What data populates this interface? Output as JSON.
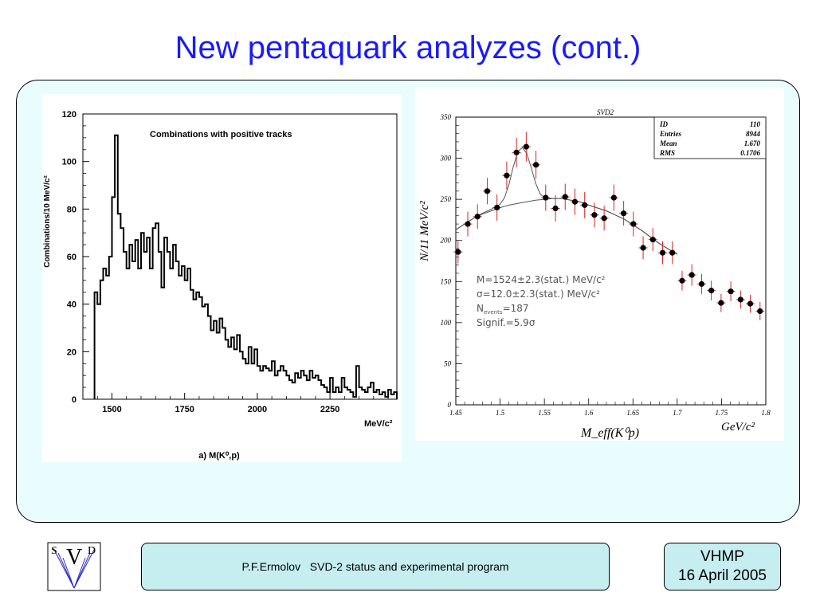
{
  "slide": {
    "title": "New pentaquark analyzes (cont.)",
    "footer_author": "P.F.Ermolov   SVD-2 status and experimental program",
    "footer_event": "VHMP",
    "footer_date": "16 April 2005",
    "logo_text": [
      "S",
      "V",
      "D"
    ]
  },
  "colors": {
    "title": "#1a1aff",
    "panel": "#e9fdff",
    "footer": "#c6eef0",
    "errorbar": "#dd2222"
  },
  "chart_data": [
    {
      "type": "bar",
      "subtype": "histogram-step",
      "title": "Combinations with positive tracks",
      "ylabel": "Combinations/10 MeV/c²",
      "xlabel_unit": "MeV/c²",
      "caption": "a) M(K⁰,p)",
      "xlim": [
        1400,
        2480
      ],
      "ylim": [
        0,
        120
      ],
      "xticks": [
        1500,
        1750,
        2000,
        2250
      ],
      "yticks": [
        0,
        20,
        40,
        60,
        80,
        100,
        120
      ],
      "bin_edges": [
        1440,
        1450,
        1460,
        1470,
        1480,
        1490,
        1500,
        1510,
        1520,
        1530,
        1540,
        1550,
        1560,
        1570,
        1580,
        1590,
        1600,
        1610,
        1620,
        1630,
        1640,
        1650,
        1660,
        1670,
        1680,
        1690,
        1700,
        1710,
        1720,
        1730,
        1740,
        1750,
        1760,
        1770,
        1780,
        1790,
        1800,
        1810,
        1820,
        1830,
        1840,
        1850,
        1860,
        1870,
        1880,
        1890,
        1900,
        1910,
        1920,
        1930,
        1940,
        1950,
        1960,
        1970,
        1980,
        1990,
        2000,
        2010,
        2020,
        2030,
        2040,
        2050,
        2060,
        2070,
        2080,
        2090,
        2100,
        2110,
        2120,
        2130,
        2140,
        2150,
        2160,
        2170,
        2180,
        2190,
        2200,
        2210,
        2220,
        2230,
        2240,
        2250,
        2260,
        2270,
        2280,
        2290,
        2300,
        2310,
        2320,
        2330,
        2340,
        2350,
        2360,
        2370,
        2380,
        2390,
        2400,
        2410,
        2420,
        2430,
        2440,
        2450,
        2460,
        2470,
        2480
      ],
      "values": [
        45,
        40,
        50,
        55,
        52,
        60,
        85,
        111,
        78,
        72,
        62,
        55,
        65,
        58,
        67,
        55,
        70,
        62,
        68,
        55,
        72,
        74,
        62,
        47,
        68,
        62,
        55,
        65,
        58,
        52,
        56,
        50,
        55,
        46,
        42,
        45,
        43,
        39,
        40,
        35,
        29,
        33,
        28,
        34,
        30,
        25,
        22,
        26,
        21,
        27,
        20,
        17,
        15,
        22,
        15,
        21,
        14,
        12,
        14,
        13,
        12,
        16,
        10,
        12,
        14,
        12,
        10,
        8,
        7,
        11,
        9,
        12,
        10,
        8,
        12,
        9,
        10,
        8,
        6,
        5,
        3,
        9,
        3,
        5,
        3,
        9,
        5,
        4,
        3,
        1,
        14,
        5,
        4,
        3,
        5,
        7,
        3,
        4,
        2,
        3,
        1,
        4,
        2,
        3
      ]
    },
    {
      "type": "scatter",
      "subtype": "points-with-errorbars-and-fit",
      "header": "SVD2",
      "ylabel": "N/11 MeV/c²",
      "xlabel": "M_eff(K⁰p)",
      "xlabel_unit": "GeV/c²",
      "xlim": [
        1.45,
        1.8
      ],
      "ylim": [
        0,
        350
      ],
      "xticks": [
        1.45,
        1.5,
        1.55,
        1.6,
        1.65,
        1.7,
        1.75,
        1.8
      ],
      "yticks": [
        0,
        50,
        100,
        150,
        200,
        250,
        300,
        350
      ],
      "stats": [
        {
          "key": "ID",
          "value": "110"
        },
        {
          "key": "Entries",
          "value": "8944"
        },
        {
          "key": "Mean",
          "value": "1.670"
        },
        {
          "key": "RMS",
          "value": "0.1706"
        }
      ],
      "annotations": [
        "M=1524±2.3(stat.) MeV/c²",
        "σ=12.0±2.3(stat.) MeV/c²",
        "N_events=187",
        "Signif.=5.9σ"
      ],
      "points": [
        {
          "x": 1.4525,
          "y": 186,
          "err": 14
        },
        {
          "x": 1.4635,
          "y": 220,
          "err": 15
        },
        {
          "x": 1.4745,
          "y": 229,
          "err": 15
        },
        {
          "x": 1.4855,
          "y": 260,
          "err": 16
        },
        {
          "x": 1.4965,
          "y": 240,
          "err": 16
        },
        {
          "x": 1.5075,
          "y": 279,
          "err": 17
        },
        {
          "x": 1.5185,
          "y": 307,
          "err": 18
        },
        {
          "x": 1.5295,
          "y": 314,
          "err": 18
        },
        {
          "x": 1.5405,
          "y": 292,
          "err": 17
        },
        {
          "x": 1.5515,
          "y": 252,
          "err": 16
        },
        {
          "x": 1.5625,
          "y": 239,
          "err": 16
        },
        {
          "x": 1.5735,
          "y": 253,
          "err": 16
        },
        {
          "x": 1.5845,
          "y": 247,
          "err": 16
        },
        {
          "x": 1.5955,
          "y": 243,
          "err": 16
        },
        {
          "x": 1.6065,
          "y": 231,
          "err": 15
        },
        {
          "x": 1.6175,
          "y": 227,
          "err": 15
        },
        {
          "x": 1.6285,
          "y": 252,
          "err": 16
        },
        {
          "x": 1.6395,
          "y": 233,
          "err": 15
        },
        {
          "x": 1.6505,
          "y": 220,
          "err": 15
        },
        {
          "x": 1.6615,
          "y": 191,
          "err": 14
        },
        {
          "x": 1.6725,
          "y": 201,
          "err": 14
        },
        {
          "x": 1.6835,
          "y": 185,
          "err": 14
        },
        {
          "x": 1.6945,
          "y": 185,
          "err": 14
        },
        {
          "x": 1.7055,
          "y": 151,
          "err": 12
        },
        {
          "x": 1.7165,
          "y": 158,
          "err": 13
        },
        {
          "x": 1.7275,
          "y": 147,
          "err": 12
        },
        {
          "x": 1.7385,
          "y": 139,
          "err": 12
        },
        {
          "x": 1.7495,
          "y": 124,
          "err": 11
        },
        {
          "x": 1.7605,
          "y": 138,
          "err": 12
        },
        {
          "x": 1.7715,
          "y": 128,
          "err": 11
        },
        {
          "x": 1.7825,
          "y": 123,
          "err": 11
        },
        {
          "x": 1.7935,
          "y": 114,
          "err": 11
        }
      ],
      "fit_curve": [
        {
          "x": 1.45,
          "y": 213
        },
        {
          "x": 1.46,
          "y": 220
        },
        {
          "x": 1.47,
          "y": 227
        },
        {
          "x": 1.48,
          "y": 233
        },
        {
          "x": 1.49,
          "y": 238
        },
        {
          "x": 1.5,
          "y": 244
        },
        {
          "x": 1.505,
          "y": 252
        },
        {
          "x": 1.51,
          "y": 268
        },
        {
          "x": 1.515,
          "y": 290
        },
        {
          "x": 1.52,
          "y": 308
        },
        {
          "x": 1.525,
          "y": 313
        },
        {
          "x": 1.53,
          "y": 306
        },
        {
          "x": 1.535,
          "y": 289
        },
        {
          "x": 1.54,
          "y": 270
        },
        {
          "x": 1.545,
          "y": 257
        },
        {
          "x": 1.55,
          "y": 252
        },
        {
          "x": 1.56,
          "y": 251
        },
        {
          "x": 1.57,
          "y": 251
        },
        {
          "x": 1.58,
          "y": 249
        },
        {
          "x": 1.59,
          "y": 247
        },
        {
          "x": 1.6,
          "y": 243
        },
        {
          "x": 1.62,
          "y": 236
        },
        {
          "x": 1.64,
          "y": 226
        },
        {
          "x": 1.66,
          "y": 212
        },
        {
          "x": 1.68,
          "y": 196
        },
        {
          "x": 1.7,
          "y": 183
        }
      ],
      "background_curve": [
        {
          "x": 1.45,
          "y": 213
        },
        {
          "x": 1.46,
          "y": 220
        },
        {
          "x": 1.47,
          "y": 227
        },
        {
          "x": 1.48,
          "y": 232
        },
        {
          "x": 1.49,
          "y": 236
        },
        {
          "x": 1.5,
          "y": 240
        },
        {
          "x": 1.51,
          "y": 243
        },
        {
          "x": 1.52,
          "y": 245
        },
        {
          "x": 1.53,
          "y": 247
        },
        {
          "x": 1.54,
          "y": 249
        },
        {
          "x": 1.55,
          "y": 250
        },
        {
          "x": 1.56,
          "y": 251
        },
        {
          "x": 1.57,
          "y": 251
        },
        {
          "x": 1.58,
          "y": 249
        },
        {
          "x": 1.59,
          "y": 247
        },
        {
          "x": 1.6,
          "y": 243
        },
        {
          "x": 1.62,
          "y": 236
        },
        {
          "x": 1.64,
          "y": 226
        },
        {
          "x": 1.66,
          "y": 212
        },
        {
          "x": 1.68,
          "y": 196
        },
        {
          "x": 1.7,
          "y": 183
        }
      ]
    }
  ]
}
